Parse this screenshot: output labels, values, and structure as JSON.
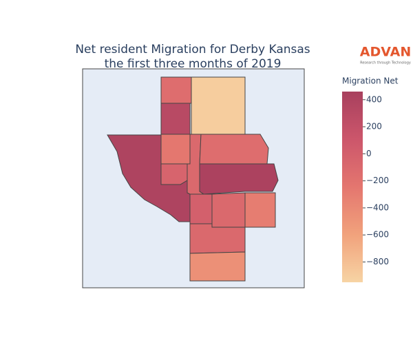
{
  "logo": {
    "text": "ADVAN",
    "tagline": "Research through Technology"
  },
  "chart_data": {
    "type": "choropleth",
    "title": [
      "Net resident Migration for Derby Kansas",
      "the first three months of 2019"
    ],
    "colorbar_title": "Migration Net",
    "values": [
      -150,
      -900,
      300,
      400,
      -250,
      -50,
      -100,
      -150,
      420,
      0,
      -100,
      -300,
      -100,
      -450
    ],
    "clim": [
      -950,
      460
    ],
    "colorscale": [
      "#f7d4a4",
      "#f1a27c",
      "#e4766f",
      "#cc566b",
      "#a8405e"
    ],
    "cticks": [
      400,
      200,
      0,
      {
        "value": -200,
        "label": "−200"
      },
      {
        "value": -400,
        "label": "−400"
      },
      {
        "value": -600,
        "label": "−600"
      },
      {
        "value": -800,
        "label": "−800"
      }
    ],
    "background": "#e5ecf6"
  }
}
